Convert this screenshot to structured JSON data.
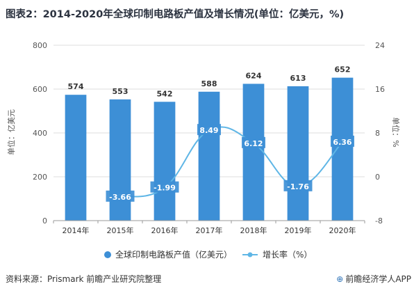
{
  "title": "图表2：2014-2020年全球印制电路板产值及增长情况(单位：亿美元，%)",
  "source": "资料来源：Prismark 前瞻产业研究院整理",
  "brand": "前瞻经济学人APP",
  "colors": {
    "bar": "#3d8fd6",
    "line": "#5fb6e6",
    "label_box": "#3d8fd6",
    "grid": "#dddddd"
  },
  "chart_data": {
    "type": "bar",
    "categories": [
      "2014年",
      "2015年",
      "2016年",
      "2017年",
      "2018年",
      "2019年",
      "2020年"
    ],
    "series": [
      {
        "name": "全球印制电路板产值（亿美元）",
        "type": "bar",
        "axis": "left",
        "values": [
          574,
          553,
          542,
          588,
          624,
          613,
          652
        ],
        "labels": [
          "574",
          "553",
          "542",
          "588",
          "624",
          "613",
          "652"
        ]
      },
      {
        "name": "增长率（%）",
        "type": "line",
        "axis": "right",
        "values": [
          null,
          -3.66,
          -1.99,
          8.49,
          6.12,
          -1.76,
          6.36
        ],
        "labels": [
          "",
          "-3.66",
          "-1.99",
          "8.49",
          "6.12",
          "-1.76",
          "6.36"
        ]
      }
    ],
    "ylabel": "单位：亿美元",
    "y2label": "单位：%",
    "ylim": [
      0,
      800
    ],
    "y2lim": [
      -8,
      24
    ],
    "yticks": [
      "0",
      "200",
      "400",
      "600",
      "800"
    ],
    "y2ticks": [
      "-8",
      "0",
      "8",
      "16",
      "24"
    ],
    "grid": true,
    "legend": "bottom"
  }
}
